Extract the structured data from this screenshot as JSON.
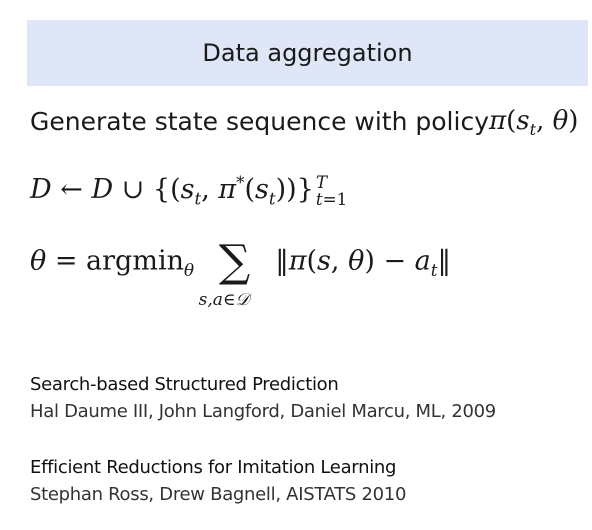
{
  "slide": {
    "title": "Data aggregation",
    "policy_text": "Generate state sequence with policy",
    "references": [
      {
        "title": "Search-based Structured Prediction",
        "authors": "Hal Daume III, John Langford, Daniel Marcu, ML, 2009"
      },
      {
        "title": "Efficient Reductions for Imitation Learning",
        "authors": "Stephan Ross, Drew Bagnell, AISTATS 2010"
      }
    ]
  }
}
